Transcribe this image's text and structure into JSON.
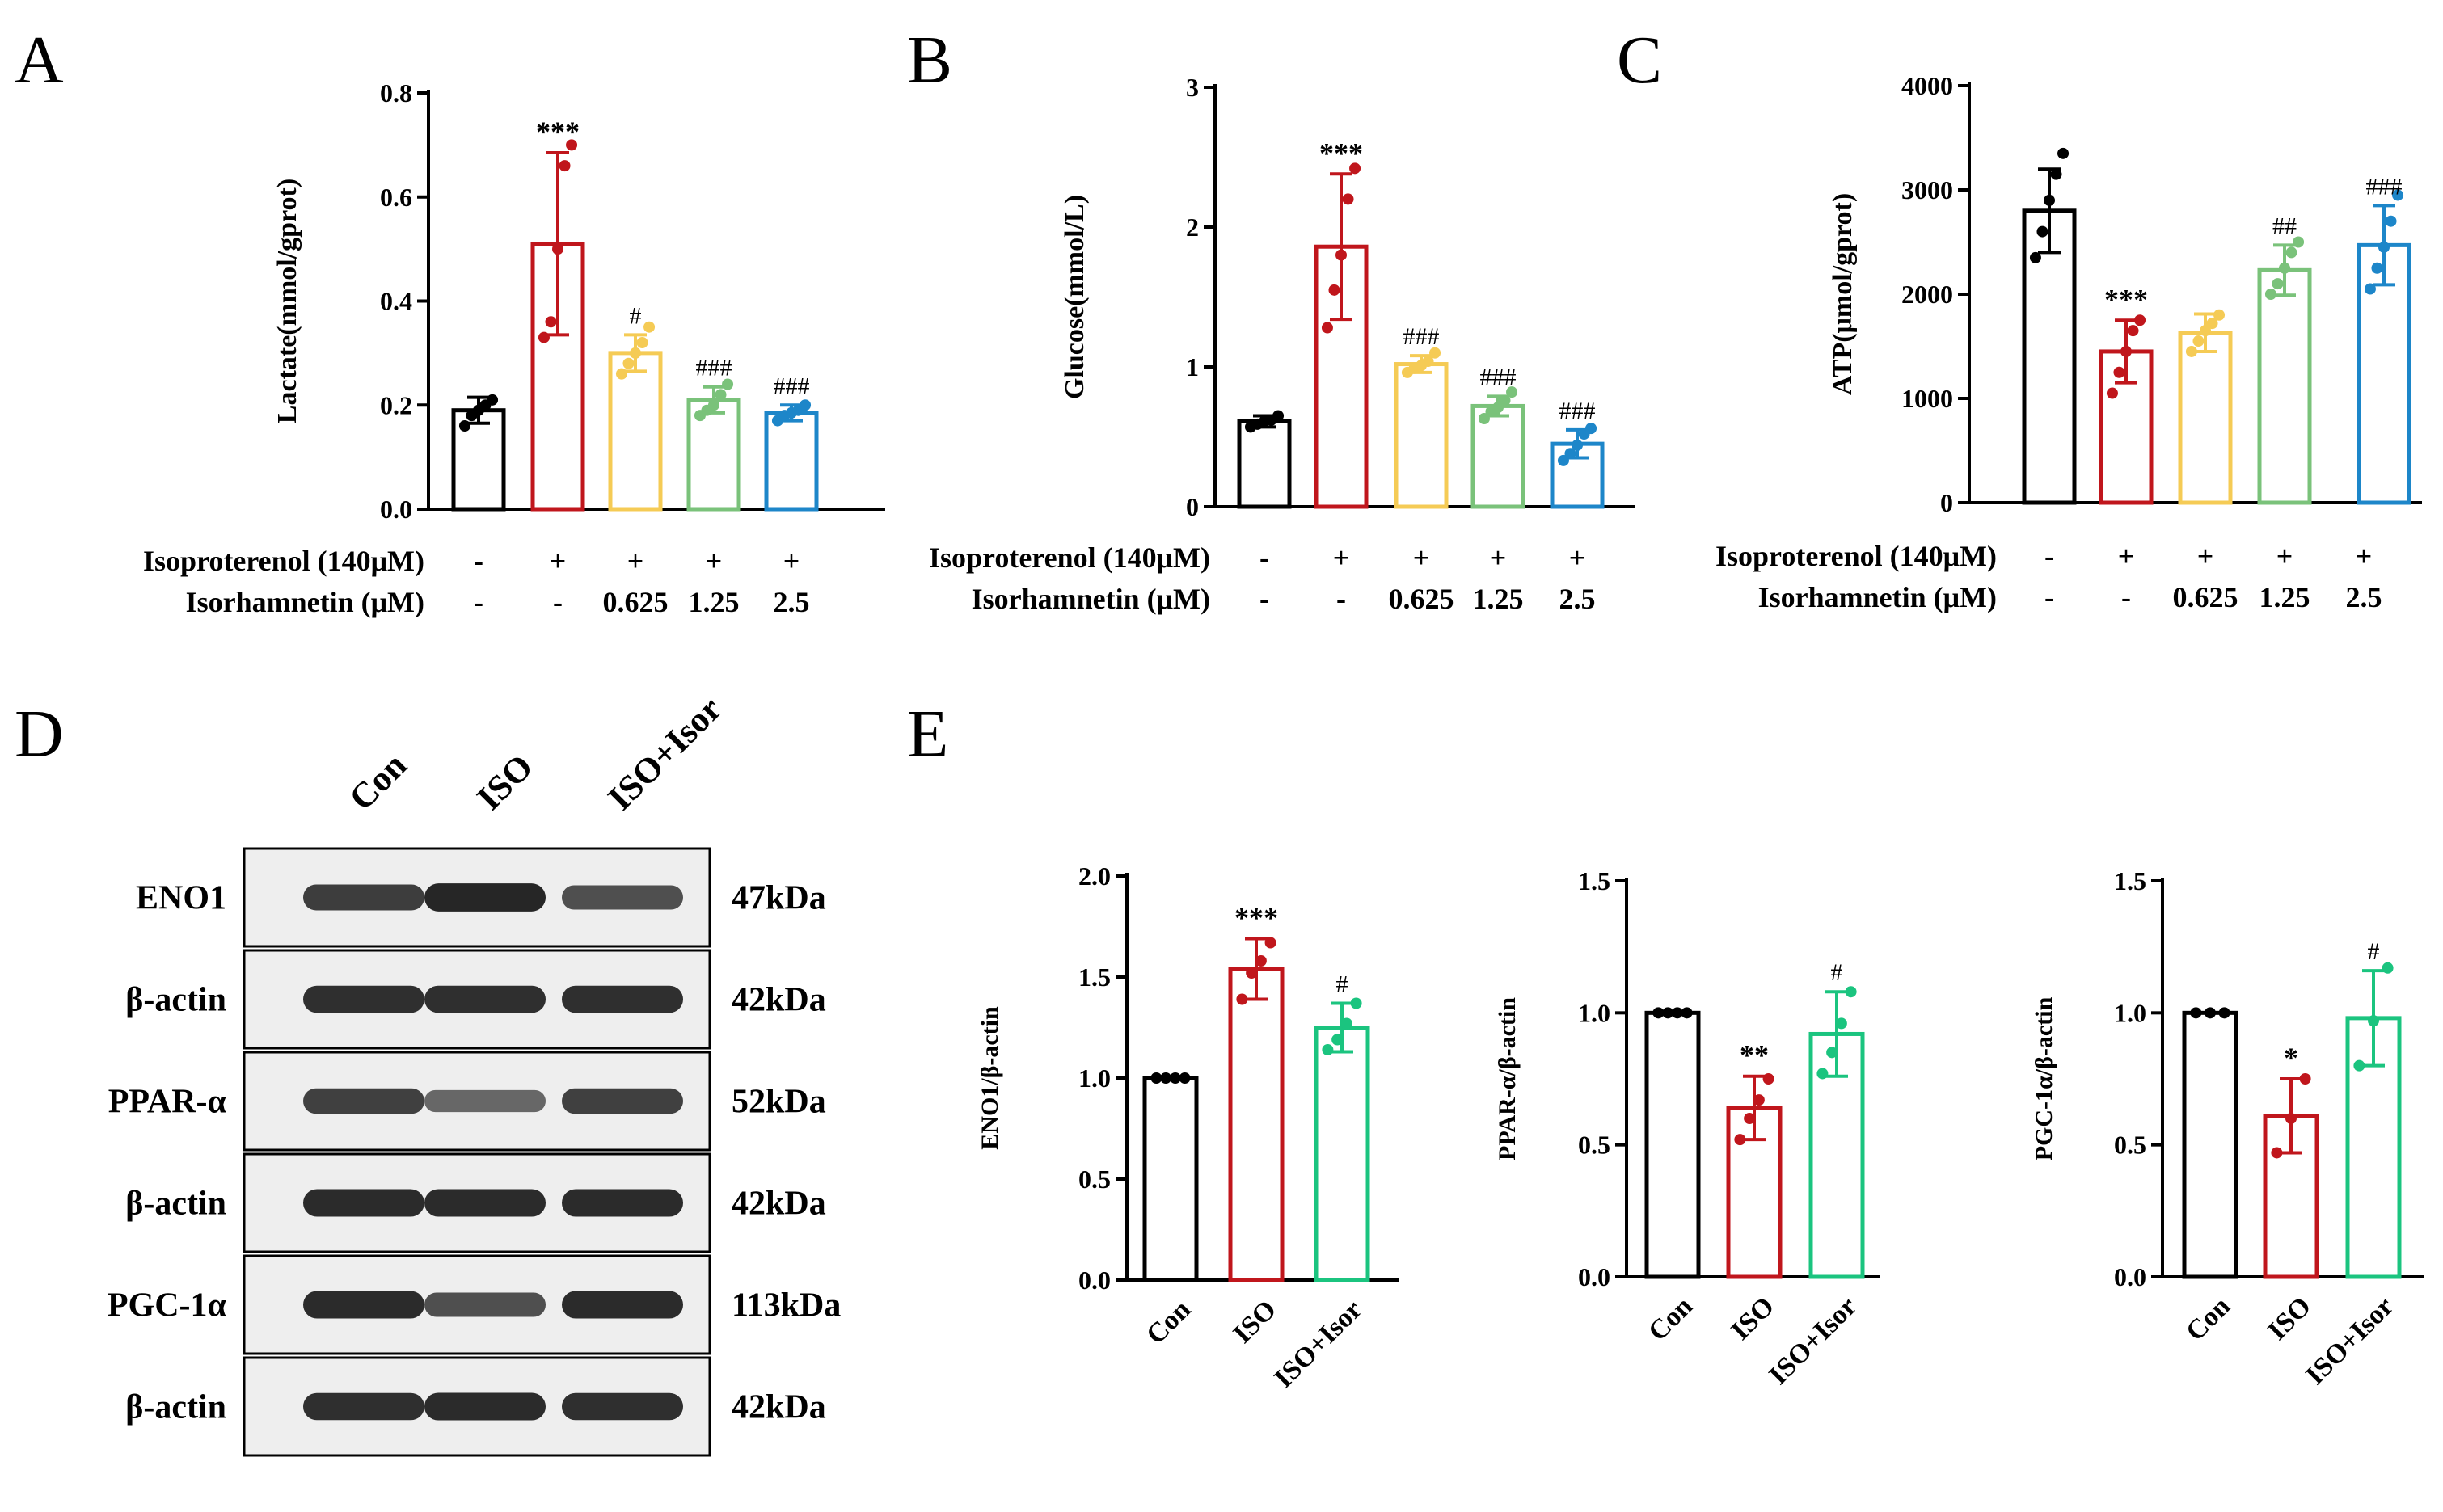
{
  "colors": {
    "Con": "#000000",
    "ISO": "#c0161c",
    "iso_0625": "#f5cb55",
    "iso_125": "#7ac27a",
    "iso_25": "#1d86c9",
    "ISO+Isor": "#1bc47f"
  },
  "panel_letters": {
    "A": "A",
    "B": "B",
    "C": "C",
    "D": "D",
    "E": "E"
  },
  "treatment_table": {
    "row1_label": "Isoproterenol (140μM)",
    "row2_label": "Isorhamnetin (μM)",
    "row1_values": [
      "-",
      "+",
      "+",
      "+",
      "+"
    ],
    "row2_values": [
      "-",
      "-",
      "0.625",
      "1.25",
      "2.5"
    ]
  },
  "blot": {
    "lane_labels": [
      "Con",
      "ISO",
      "ISO+Isor"
    ],
    "rows": [
      {
        "protein": "ENO1",
        "kda": "47kDa",
        "intensity": [
          0.75,
          0.92,
          0.62
        ]
      },
      {
        "protein": "β-actin",
        "kda": "42kDa",
        "intensity": [
          0.85,
          0.85,
          0.85
        ]
      },
      {
        "protein": "PPAR-α",
        "kda": "52kDa",
        "intensity": [
          0.72,
          0.45,
          0.72
        ]
      },
      {
        "protein": "β-actin",
        "kda": "42kDa",
        "intensity": [
          0.88,
          0.88,
          0.88
        ]
      },
      {
        "protein": "PGC-1α",
        "kda": "113kDa",
        "intensity": [
          0.88,
          0.62,
          0.88
        ]
      },
      {
        "protein": "β-actin",
        "kda": "42kDa",
        "intensity": [
          0.85,
          0.88,
          0.85
        ]
      }
    ]
  },
  "chart_data": [
    {
      "type": "bar",
      "ylabel": "Lactate(mmol/gprot)",
      "ylim": [
        0,
        0.8
      ],
      "yticks": [
        0.0,
        0.2,
        0.4,
        0.6,
        0.8
      ],
      "tick_labels": [
        "0.0",
        "0.2",
        "0.4",
        "0.6",
        "0.8"
      ],
      "categories": [
        "Con",
        "ISO",
        "ISO+0.625",
        "ISO+1.25",
        "ISO+2.5"
      ],
      "values": [
        0.19,
        0.51,
        0.3,
        0.21,
        0.185
      ],
      "errors": [
        0.025,
        0.175,
        0.035,
        0.025,
        0.015
      ],
      "points": [
        [
          0.16,
          0.18,
          0.19,
          0.2,
          0.21
        ],
        [
          0.33,
          0.36,
          0.5,
          0.66,
          0.7
        ],
        [
          0.26,
          0.28,
          0.3,
          0.32,
          0.35
        ],
        [
          0.18,
          0.19,
          0.2,
          0.22,
          0.24
        ],
        [
          0.17,
          0.18,
          0.185,
          0.19,
          0.2
        ]
      ],
      "annotations": [
        "",
        "***",
        "#",
        "###",
        "###"
      ],
      "bar_colors": [
        "Con",
        "ISO",
        "iso_0625",
        "iso_125",
        "iso_25"
      ]
    },
    {
      "type": "bar",
      "ylabel": "Glucose(mmol/L)",
      "ylim": [
        0,
        3
      ],
      "yticks": [
        0,
        1,
        2,
        3
      ],
      "tick_labels": [
        "0",
        "1",
        "2",
        "3"
      ],
      "categories": [
        "Con",
        "ISO",
        "ISO+0.625",
        "ISO+1.25",
        "ISO+2.5"
      ],
      "values": [
        0.61,
        1.86,
        1.02,
        0.72,
        0.45
      ],
      "errors": [
        0.04,
        0.52,
        0.06,
        0.07,
        0.1
      ],
      "points": [
        [
          0.57,
          0.59,
          0.61,
          0.62,
          0.65
        ],
        [
          1.28,
          1.55,
          1.8,
          2.2,
          2.42
        ],
        [
          0.96,
          0.99,
          1.01,
          1.04,
          1.1
        ],
        [
          0.63,
          0.68,
          0.71,
          0.76,
          0.82
        ],
        [
          0.33,
          0.38,
          0.44,
          0.52,
          0.56
        ]
      ],
      "annotations": [
        "",
        "***",
        "###",
        "###",
        "###"
      ],
      "bar_colors": [
        "Con",
        "ISO",
        "iso_0625",
        "iso_125",
        "iso_25"
      ]
    },
    {
      "type": "bar",
      "ylabel": "ATP(μmol/gprot)",
      "ylim": [
        0,
        4000
      ],
      "yticks": [
        0,
        1000,
        2000,
        3000,
        4000
      ],
      "tick_labels": [
        "0",
        "1000",
        "2000",
        "3000",
        "4000"
      ],
      "categories": [
        "Con",
        "ISO",
        "ISO+0.625",
        "ISO+1.25",
        "ISO+2.5"
      ],
      "values": [
        2800,
        1450,
        1630,
        2230,
        2470
      ],
      "errors": [
        400,
        300,
        180,
        240,
        380
      ],
      "points": [
        [
          2350,
          2600,
          2900,
          3150,
          3350
        ],
        [
          1050,
          1250,
          1450,
          1650,
          1750
        ],
        [
          1450,
          1550,
          1650,
          1720,
          1800
        ],
        [
          2000,
          2100,
          2250,
          2400,
          2500
        ],
        [
          2050,
          2250,
          2450,
          2700,
          2950
        ]
      ],
      "annotations": [
        "",
        "***",
        "",
        "##",
        "###"
      ],
      "bar_colors": [
        "Con",
        "ISO",
        "iso_0625",
        "iso_125",
        "iso_25"
      ]
    },
    {
      "type": "bar",
      "ylabel": "ENO1/β-actin",
      "ylim": [
        0,
        2.0
      ],
      "yticks": [
        0,
        0.5,
        1.0,
        1.5,
        2.0
      ],
      "tick_labels": [
        "0.0",
        "0.5",
        "1.0",
        "1.5",
        "2.0"
      ],
      "categories": [
        "Con",
        "ISO",
        "ISO+Isor"
      ],
      "values": [
        1.0,
        1.54,
        1.25
      ],
      "errors": [
        0,
        0.15,
        0.12
      ],
      "points": [
        [
          1.0,
          1.0,
          1.0,
          1.0
        ],
        [
          1.39,
          1.52,
          1.58,
          1.67
        ],
        [
          1.14,
          1.19,
          1.27,
          1.37
        ]
      ],
      "annotations": [
        "",
        "***",
        "#"
      ],
      "bar_colors": [
        "Con",
        "ISO",
        "ISO+Isor"
      ]
    },
    {
      "type": "bar",
      "ylabel": "PPAR-α/β-actin",
      "ylim": [
        0,
        1.5
      ],
      "yticks": [
        0,
        0.5,
        1.0,
        1.5
      ],
      "tick_labels": [
        "0.0",
        "0.5",
        "1.0",
        "1.5"
      ],
      "categories": [
        "Con",
        "ISO",
        "ISO+Isor"
      ],
      "values": [
        1.0,
        0.64,
        0.92
      ],
      "errors": [
        0,
        0.12,
        0.16
      ],
      "points": [
        [
          1.0,
          1.0,
          1.0,
          1.0
        ],
        [
          0.52,
          0.6,
          0.67,
          0.75
        ],
        [
          0.77,
          0.85,
          0.96,
          1.08
        ]
      ],
      "annotations": [
        "",
        "**",
        "#"
      ],
      "bar_colors": [
        "Con",
        "ISO",
        "ISO+Isor"
      ]
    },
    {
      "type": "bar",
      "ylabel": "PGC-1α/β-actin",
      "ylim": [
        0,
        1.5
      ],
      "yticks": [
        0,
        0.5,
        1.0,
        1.5
      ],
      "tick_labels": [
        "0.0",
        "0.5",
        "1.0",
        "1.5"
      ],
      "categories": [
        "Con",
        "ISO",
        "ISO+Isor"
      ],
      "values": [
        1.0,
        0.61,
        0.98
      ],
      "errors": [
        0,
        0.14,
        0.18
      ],
      "points": [
        [
          1.0,
          1.0,
          1.0
        ],
        [
          0.47,
          0.6,
          0.75
        ],
        [
          0.8,
          0.97,
          1.17
        ]
      ],
      "annotations": [
        "",
        "*",
        "#"
      ],
      "bar_colors": [
        "Con",
        "ISO",
        "ISO+Isor"
      ]
    }
  ]
}
